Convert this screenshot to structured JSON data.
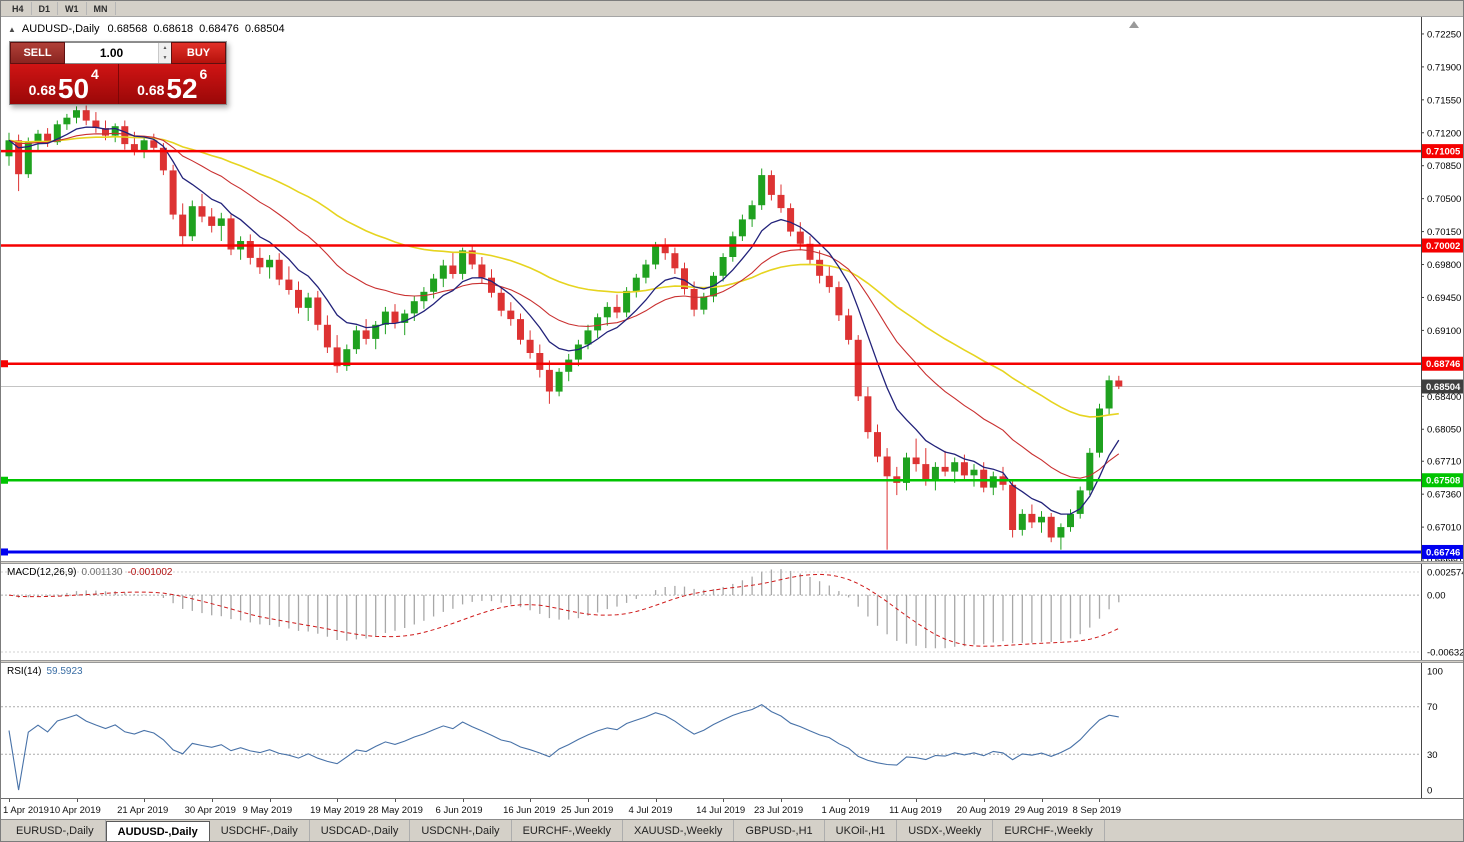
{
  "toolbar": {
    "timeframes": [
      "H4",
      "D1",
      "W1",
      "MN"
    ]
  },
  "chart": {
    "symbol": "AUDUSD-,Daily",
    "open": "0.68568",
    "high": "0.68618",
    "low": "0.68476",
    "close": "0.68504"
  },
  "trade_panel": {
    "sell_label": "SELL",
    "buy_label": "BUY",
    "volume": "1.00",
    "sell_price": {
      "prefix": "0.68",
      "big": "50",
      "sup": "4"
    },
    "buy_price": {
      "prefix": "0.68",
      "big": "52",
      "sup": "6"
    }
  },
  "chart_data": {
    "type": "candlestick",
    "symbol": "AUDUSD",
    "timeframe": "Daily",
    "price_axis_ticks": [
      "0.72250",
      "0.71900",
      "0.71550",
      "0.71200",
      "0.70850",
      "0.70500",
      "0.70150",
      "0.69800",
      "0.69450",
      "0.69100",
      "0.68750",
      "0.68400",
      "0.68050",
      "0.67710",
      "0.67360",
      "0.67010",
      "0.66660"
    ],
    "horizontal_lines": [
      {
        "price": 0.71005,
        "label": "0.71005",
        "color": "#f50000",
        "width": 2.5,
        "marker": false
      },
      {
        "price": 0.70002,
        "label": "0.70002",
        "color": "#f50000",
        "width": 2.5,
        "marker": false
      },
      {
        "price": 0.68746,
        "label": "0.68746",
        "color": "#f50000",
        "width": 2.5,
        "marker": true
      },
      {
        "price": 0.67508,
        "label": "0.67508",
        "color": "#00c400",
        "width": 2.5,
        "marker": true
      },
      {
        "price": 0.66746,
        "label": "0.66746",
        "color": "#0000f0",
        "width": 3,
        "marker": true
      }
    ],
    "current_price": {
      "value": 0.68504,
      "label": "0.68504"
    },
    "moving_averages": [
      {
        "period": 8,
        "color": "#22227a",
        "width": 1.3
      },
      {
        "period": 20,
        "color": "#c93030",
        "width": 1.1
      },
      {
        "period": 45,
        "color": "#e6d41f",
        "width": 1.6
      }
    ],
    "colors": {
      "up": "#1fa11f",
      "down": "#dd3333",
      "histogram": "#a8a8a8",
      "signal": "#cf1a1a",
      "rsi_line": "#4872a8"
    },
    "candles": [
      [
        0.7095,
        0.712,
        0.7085,
        0.7112
      ],
      [
        0.7112,
        0.7118,
        0.7058,
        0.7076
      ],
      [
        0.7076,
        0.7115,
        0.7072,
        0.711
      ],
      [
        0.711,
        0.7123,
        0.71,
        0.7119
      ],
      [
        0.7119,
        0.7125,
        0.7105,
        0.711
      ],
      [
        0.711,
        0.7133,
        0.7107,
        0.7129
      ],
      [
        0.7129,
        0.714,
        0.7123,
        0.7136
      ],
      [
        0.7136,
        0.7148,
        0.713,
        0.7144
      ],
      [
        0.7144,
        0.7149,
        0.7128,
        0.7133
      ],
      [
        0.7133,
        0.7142,
        0.712,
        0.7125
      ],
      [
        0.7125,
        0.7133,
        0.7112,
        0.7117
      ],
      [
        0.7117,
        0.713,
        0.711,
        0.7127
      ],
      [
        0.7127,
        0.7133,
        0.7102,
        0.7108
      ],
      [
        0.7108,
        0.7121,
        0.7096,
        0.7101
      ],
      [
        0.7101,
        0.7116,
        0.7093,
        0.7112
      ],
      [
        0.7112,
        0.7119,
        0.71,
        0.7104
      ],
      [
        0.7104,
        0.7109,
        0.7075,
        0.708
      ],
      [
        0.708,
        0.7086,
        0.7028,
        0.7033
      ],
      [
        0.7033,
        0.7045,
        0.7,
        0.701
      ],
      [
        0.701,
        0.7048,
        0.7005,
        0.7042
      ],
      [
        0.7042,
        0.7055,
        0.7025,
        0.7031
      ],
      [
        0.7031,
        0.704,
        0.7014,
        0.7021
      ],
      [
        0.7021,
        0.7035,
        0.7005,
        0.7029
      ],
      [
        0.7029,
        0.7033,
        0.699,
        0.6996
      ],
      [
        0.6996,
        0.701,
        0.6985,
        0.7005
      ],
      [
        0.7005,
        0.7012,
        0.698,
        0.6987
      ],
      [
        0.6987,
        0.6998,
        0.697,
        0.6977
      ],
      [
        0.6977,
        0.699,
        0.6965,
        0.6985
      ],
      [
        0.6985,
        0.6992,
        0.6958,
        0.6964
      ],
      [
        0.6964,
        0.6978,
        0.6948,
        0.6953
      ],
      [
        0.6953,
        0.6962,
        0.6928,
        0.6934
      ],
      [
        0.6934,
        0.695,
        0.692,
        0.6945
      ],
      [
        0.6945,
        0.6952,
        0.691,
        0.6916
      ],
      [
        0.6916,
        0.6926,
        0.6886,
        0.6892
      ],
      [
        0.6892,
        0.6905,
        0.6865,
        0.6872
      ],
      [
        0.6872,
        0.6895,
        0.6867,
        0.689
      ],
      [
        0.689,
        0.6915,
        0.6885,
        0.691
      ],
      [
        0.691,
        0.6922,
        0.6895,
        0.6901
      ],
      [
        0.6901,
        0.692,
        0.689,
        0.6916
      ],
      [
        0.6916,
        0.6935,
        0.6906,
        0.693
      ],
      [
        0.693,
        0.6938,
        0.6912,
        0.6918
      ],
      [
        0.6918,
        0.6932,
        0.6905,
        0.6928
      ],
      [
        0.6928,
        0.6946,
        0.692,
        0.6941
      ],
      [
        0.6941,
        0.6956,
        0.6933,
        0.6951
      ],
      [
        0.6951,
        0.697,
        0.6944,
        0.6965
      ],
      [
        0.6965,
        0.6985,
        0.6956,
        0.6979
      ],
      [
        0.6979,
        0.6993,
        0.6965,
        0.697
      ],
      [
        0.697,
        0.6998,
        0.6964,
        0.6995
      ],
      [
        0.6995,
        0.7,
        0.6975,
        0.698
      ],
      [
        0.698,
        0.6988,
        0.696,
        0.6966
      ],
      [
        0.6966,
        0.6975,
        0.6945,
        0.695
      ],
      [
        0.695,
        0.6956,
        0.6925,
        0.6931
      ],
      [
        0.6931,
        0.694,
        0.6915,
        0.6922
      ],
      [
        0.6922,
        0.6928,
        0.6895,
        0.69
      ],
      [
        0.69,
        0.691,
        0.688,
        0.6886
      ],
      [
        0.6886,
        0.6895,
        0.686,
        0.6868
      ],
      [
        0.6868,
        0.6878,
        0.6832,
        0.6845
      ],
      [
        0.6845,
        0.687,
        0.684,
        0.6866
      ],
      [
        0.6866,
        0.6885,
        0.6856,
        0.6879
      ],
      [
        0.6879,
        0.69,
        0.6872,
        0.6895
      ],
      [
        0.6895,
        0.6916,
        0.689,
        0.691
      ],
      [
        0.691,
        0.6928,
        0.6902,
        0.6924
      ],
      [
        0.6924,
        0.694,
        0.6915,
        0.6935
      ],
      [
        0.6935,
        0.6948,
        0.6923,
        0.6929
      ],
      [
        0.6929,
        0.6956,
        0.6924,
        0.6952
      ],
      [
        0.6952,
        0.697,
        0.6945,
        0.6966
      ],
      [
        0.6966,
        0.6985,
        0.696,
        0.698
      ],
      [
        0.698,
        0.7004,
        0.6975,
        0.7
      ],
      [
        0.7,
        0.7008,
        0.6985,
        0.6992
      ],
      [
        0.6992,
        0.6998,
        0.697,
        0.6976
      ],
      [
        0.6976,
        0.6982,
        0.6948,
        0.6954
      ],
      [
        0.6954,
        0.6962,
        0.6925,
        0.6932
      ],
      [
        0.6932,
        0.695,
        0.6927,
        0.6946
      ],
      [
        0.6946,
        0.6972,
        0.694,
        0.6968
      ],
      [
        0.6968,
        0.6992,
        0.6962,
        0.6988
      ],
      [
        0.6988,
        0.7015,
        0.6983,
        0.701
      ],
      [
        0.701,
        0.7033,
        0.7005,
        0.7028
      ],
      [
        0.7028,
        0.7048,
        0.702,
        0.7043
      ],
      [
        0.7043,
        0.7082,
        0.7038,
        0.7075
      ],
      [
        0.7075,
        0.708,
        0.7048,
        0.7054
      ],
      [
        0.7054,
        0.7065,
        0.7035,
        0.704
      ],
      [
        0.704,
        0.7045,
        0.701,
        0.7015
      ],
      [
        0.7015,
        0.7025,
        0.6995,
        0.7002
      ],
      [
        0.7002,
        0.701,
        0.698,
        0.6985
      ],
      [
        0.6985,
        0.6995,
        0.696,
        0.6968
      ],
      [
        0.6968,
        0.6978,
        0.695,
        0.6956
      ],
      [
        0.6956,
        0.6962,
        0.692,
        0.6926
      ],
      [
        0.6926,
        0.6933,
        0.6895,
        0.69
      ],
      [
        0.69,
        0.6905,
        0.6835,
        0.684
      ],
      [
        0.684,
        0.685,
        0.6795,
        0.6802
      ],
      [
        0.6802,
        0.681,
        0.677,
        0.6776
      ],
      [
        0.6776,
        0.6785,
        0.6677,
        0.6755
      ],
      [
        0.6755,
        0.6765,
        0.6735,
        0.6748
      ],
      [
        0.6748,
        0.678,
        0.674,
        0.6775
      ],
      [
        0.6775,
        0.6795,
        0.676,
        0.6768
      ],
      [
        0.6768,
        0.6785,
        0.6745,
        0.6752
      ],
      [
        0.6752,
        0.677,
        0.674,
        0.6765
      ],
      [
        0.6765,
        0.6782,
        0.6755,
        0.676
      ],
      [
        0.676,
        0.6775,
        0.6748,
        0.677
      ],
      [
        0.677,
        0.6778,
        0.6752,
        0.6756
      ],
      [
        0.6756,
        0.6768,
        0.6744,
        0.6762
      ],
      [
        0.6762,
        0.677,
        0.6738,
        0.6743
      ],
      [
        0.6743,
        0.676,
        0.6735,
        0.6755
      ],
      [
        0.6755,
        0.6765,
        0.674,
        0.6746
      ],
      [
        0.6746,
        0.6752,
        0.669,
        0.6698
      ],
      [
        0.6698,
        0.672,
        0.6692,
        0.6715
      ],
      [
        0.6715,
        0.6725,
        0.67,
        0.6706
      ],
      [
        0.6706,
        0.6718,
        0.6695,
        0.6712
      ],
      [
        0.6712,
        0.6716,
        0.6685,
        0.669
      ],
      [
        0.669,
        0.6705,
        0.6677,
        0.6701
      ],
      [
        0.6701,
        0.672,
        0.6696,
        0.6715
      ],
      [
        0.6715,
        0.6744,
        0.671,
        0.674
      ],
      [
        0.674,
        0.6785,
        0.6735,
        0.678
      ],
      [
        0.678,
        0.6832,
        0.6775,
        0.6827
      ],
      [
        0.6827,
        0.6862,
        0.682,
        0.6857
      ],
      [
        0.68568,
        0.68618,
        0.68476,
        0.68504
      ]
    ],
    "date_labels": [
      {
        "text": "1 Apr 2019",
        "i": 0
      },
      {
        "text": "10 Apr 2019",
        "i": 7
      },
      {
        "text": "21 Apr 2019",
        "i": 14
      },
      {
        "text": "30 Apr 2019",
        "i": 21
      },
      {
        "text": "9 May 2019",
        "i": 27
      },
      {
        "text": "19 May 2019",
        "i": 34
      },
      {
        "text": "28 May 2019",
        "i": 40
      },
      {
        "text": "6 Jun 2019",
        "i": 47
      },
      {
        "text": "16 Jun 2019",
        "i": 54
      },
      {
        "text": "25 Jun 2019",
        "i": 60
      },
      {
        "text": "4 Jul 2019",
        "i": 67
      },
      {
        "text": "14 Jul 2019",
        "i": 74
      },
      {
        "text": "23 Jul 2019",
        "i": 80
      },
      {
        "text": "1 Aug 2019",
        "i": 87
      },
      {
        "text": "11 Aug 2019",
        "i": 94
      },
      {
        "text": "20 Aug 2019",
        "i": 101
      },
      {
        "text": "29 Aug 2019",
        "i": 107
      },
      {
        "text": "8 Sep 2019",
        "i": 113
      }
    ],
    "indicators": {
      "macd": {
        "name": "MACD(12,26,9)",
        "main_value": "0.001130",
        "signal_value": "-0.001002",
        "params": [
          12,
          26,
          9
        ],
        "axis": {
          "top": "0.002574",
          "zero": "0.00",
          "bottom": "-0.006326"
        }
      },
      "rsi": {
        "name": "RSI(14)",
        "value": "59.5923",
        "period": 14,
        "axis": [
          "100",
          "70",
          "30",
          "0"
        ],
        "levels": [
          70,
          30
        ]
      }
    }
  },
  "tabs": {
    "items": [
      {
        "label": "EURUSD-,Daily",
        "active": false
      },
      {
        "label": "AUDUSD-,Daily",
        "active": true
      },
      {
        "label": "USDCHF-,Daily",
        "active": false
      },
      {
        "label": "USDCAD-,Daily",
        "active": false
      },
      {
        "label": "USDCNH-,Daily",
        "active": false
      },
      {
        "label": "EURCHF-,Weekly",
        "active": false
      },
      {
        "label": "XAUUSD-,Weekly",
        "active": false
      },
      {
        "label": "GBPUSD-,H1",
        "active": false
      },
      {
        "label": "UKOil-,H1",
        "active": false
      },
      {
        "label": "USDX-,Weekly",
        "active": false
      },
      {
        "label": "EURCHF-,Weekly",
        "active": false
      }
    ]
  }
}
